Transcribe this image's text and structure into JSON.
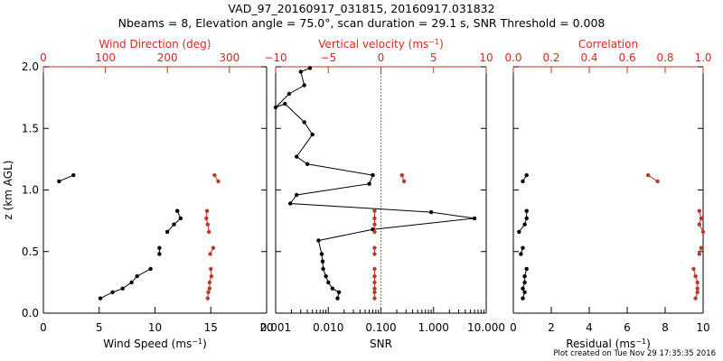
{
  "header": {
    "title_line1": "VAD_97_20160917_031815, 20160917.031832",
    "title_line2": "Nbeams = 8, Elevation angle = 75.0°, scan duration = 29.1 s, SNR Threshold = 0.008",
    "footer": "Plot created on Tue Nov 29 17:35:35 2016"
  },
  "colors": {
    "axes": "#000000",
    "secondary": "#d42a1e",
    "marker_secondary": "#b33d2a",
    "data": "#000000"
  },
  "chart_data": [
    {
      "type": "line",
      "panel": "wind",
      "ylabel": "z (km AGL)",
      "ylim": [
        0,
        2
      ],
      "yticks": [
        "0.0",
        "0.5",
        "1.0",
        "1.5",
        "2.0"
      ],
      "bottom_axis": {
        "label": "Wind Speed (ms⁻¹)",
        "range": [
          0,
          20
        ],
        "ticks": [
          "0",
          "5",
          "10",
          "15",
          "20"
        ]
      },
      "top_axis": {
        "label": "Wind Direction (deg)",
        "range": [
          0,
          360
        ],
        "ticks": [
          "0",
          "100",
          "200",
          "300"
        ]
      },
      "series": [
        {
          "name": "Wind Speed",
          "axis": "bottom",
          "points": [
            [
              5.1,
              0.12
            ],
            [
              6.2,
              0.17
            ],
            [
              7.1,
              0.2
            ],
            [
              7.9,
              0.25
            ],
            [
              8.4,
              0.3
            ],
            [
              9.6,
              0.36
            ],
            null,
            [
              10.4,
              0.48
            ],
            [
              10.4,
              0.53
            ],
            null,
            [
              11.1,
              0.66
            ],
            [
              11.7,
              0.72
            ],
            [
              12.3,
              0.77
            ],
            [
              12.0,
              0.83
            ],
            null,
            [
              1.4,
              1.07
            ],
            [
              2.7,
              1.12
            ]
          ]
        },
        {
          "name": "Wind Direction",
          "axis": "top",
          "points": [
            [
              265,
              0.12
            ],
            [
              266,
              0.17
            ],
            [
              268,
              0.2
            ],
            [
              268,
              0.25
            ],
            [
              271,
              0.3
            ],
            [
              270,
              0.36
            ],
            null,
            [
              269,
              0.48
            ],
            [
              274,
              0.53
            ],
            null,
            [
              267,
              0.66
            ],
            [
              265,
              0.72
            ],
            [
              263,
              0.77
            ],
            [
              264,
              0.83
            ],
            null,
            [
              276,
              1.12
            ],
            [
              282,
              1.07
            ]
          ]
        }
      ]
    },
    {
      "type": "line",
      "panel": "snr",
      "ylim": [
        0,
        2
      ],
      "bottom_axis": {
        "label": "SNR",
        "scale": "log",
        "range": [
          0.001,
          10
        ],
        "ticks": [
          "0.001",
          "0.010",
          "0.100",
          "1.000",
          "10.000"
        ]
      },
      "top_axis": {
        "label": "Vertical velocity (ms⁻¹)",
        "range": [
          -10,
          10
        ],
        "ticks": [
          "−10",
          "−5",
          "0",
          "5",
          "10"
        ]
      },
      "reference_line": {
        "axis": "top",
        "value": 0
      },
      "series": [
        {
          "name": "SNR",
          "axis": "bottom",
          "points": [
            [
              0.015,
              0.12
            ],
            [
              0.016,
              0.17
            ],
            [
              0.012,
              0.2
            ],
            [
              0.01,
              0.25
            ],
            [
              0.009,
              0.3
            ],
            [
              0.008,
              0.36
            ],
            [
              0.0078,
              0.42
            ],
            [
              0.0075,
              0.48
            ],
            [
              0.0065,
              0.59
            ],
            [
              0.07,
              0.68
            ],
            [
              6.0,
              0.77
            ],
            [
              0.9,
              0.82
            ],
            [
              0.0019,
              0.89
            ],
            [
              0.0025,
              0.96
            ],
            [
              0.06,
              1.05
            ],
            [
              0.07,
              1.12
            ],
            [
              0.004,
              1.21
            ],
            [
              0.0025,
              1.27
            ],
            [
              0.005,
              1.45
            ],
            [
              0.0035,
              1.55
            ],
            [
              0.0015,
              1.7
            ],
            [
              0.001,
              1.67
            ],
            [
              0.0018,
              1.78
            ],
            [
              0.0035,
              1.85
            ],
            [
              0.003,
              1.96
            ],
            [
              0.0045,
              1.99
            ]
          ]
        },
        {
          "name": "Vertical velocity",
          "axis": "top",
          "points": [
            [
              -0.6,
              0.12
            ],
            [
              -0.6,
              0.17
            ],
            [
              -0.6,
              0.2
            ],
            [
              -0.6,
              0.25
            ],
            [
              -0.6,
              0.3
            ],
            [
              -0.6,
              0.36
            ],
            null,
            [
              -0.6,
              0.48
            ],
            [
              -0.6,
              0.53
            ],
            null,
            [
              -0.6,
              0.66
            ],
            [
              -0.6,
              0.72
            ],
            [
              -0.6,
              0.77
            ],
            [
              -0.6,
              0.83
            ],
            null,
            [
              2.0,
              1.12
            ],
            [
              2.2,
              1.07
            ]
          ]
        }
      ]
    },
    {
      "type": "line",
      "panel": "residual",
      "ylim": [
        0,
        2
      ],
      "bottom_axis": {
        "label": "Residual (ms⁻¹)",
        "range": [
          0,
          10
        ],
        "ticks": [
          "0",
          "2",
          "4",
          "6",
          "8",
          "10"
        ]
      },
      "top_axis": {
        "label": "Correlation",
        "range": [
          0,
          1
        ],
        "ticks": [
          "0.0",
          "0.2",
          "0.4",
          "0.6",
          "0.8",
          "1.0"
        ]
      },
      "series": [
        {
          "name": "Residual",
          "axis": "bottom",
          "points": [
            [
              0.5,
              0.12
            ],
            [
              0.6,
              0.17
            ],
            [
              0.5,
              0.2
            ],
            [
              0.6,
              0.25
            ],
            [
              0.6,
              0.3
            ],
            [
              0.7,
              0.36
            ],
            null,
            [
              0.4,
              0.48
            ],
            [
              0.5,
              0.53
            ],
            null,
            [
              0.3,
              0.66
            ],
            [
              0.6,
              0.72
            ],
            [
              0.7,
              0.77
            ],
            [
              0.7,
              0.83
            ],
            null,
            [
              0.5,
              1.07
            ],
            [
              0.7,
              1.12
            ]
          ]
        },
        {
          "name": "Correlation",
          "axis": "top",
          "points": [
            [
              0.96,
              0.12
            ],
            [
              0.97,
              0.17
            ],
            [
              0.97,
              0.2
            ],
            [
              0.97,
              0.25
            ],
            [
              0.96,
              0.3
            ],
            [
              0.95,
              0.36
            ],
            null,
            [
              0.98,
              0.48
            ],
            [
              0.99,
              0.53
            ],
            null,
            [
              1.0,
              0.66
            ],
            [
              0.98,
              0.72
            ],
            [
              0.99,
              0.77
            ],
            [
              0.98,
              0.83
            ],
            null,
            [
              0.71,
              1.12
            ],
            [
              0.76,
              1.07
            ]
          ]
        }
      ]
    }
  ]
}
